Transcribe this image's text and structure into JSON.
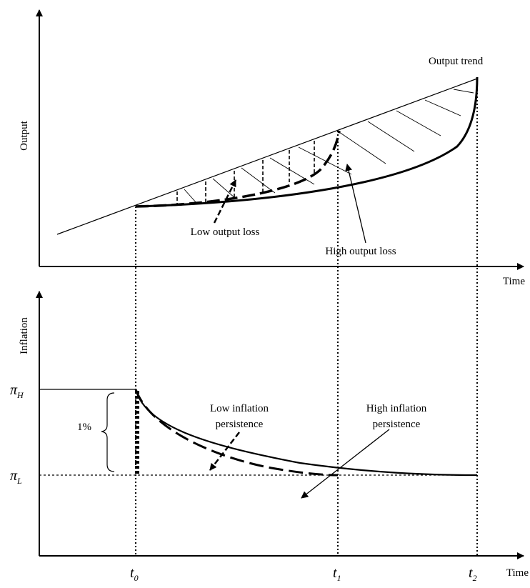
{
  "top_panel": {
    "y_axis_label": "Output",
    "x_axis_label": "Time",
    "trend_label": "Output trend",
    "low_loss_label": "Low output loss",
    "high_loss_label": "High output loss"
  },
  "bottom_panel": {
    "y_axis_label": "Inflation",
    "x_axis_label": "Time",
    "pi_high": {
      "symbol": "π",
      "subscript": "H"
    },
    "pi_low": {
      "symbol": "π",
      "subscript": "L"
    },
    "gap_label": "1%",
    "low_persistence_label": [
      "Low inflation",
      "persistence"
    ],
    "high_persistence_label": [
      "High inflation",
      "persistence"
    ],
    "time_marks": [
      {
        "symbol": "t",
        "subscript": "0"
      },
      {
        "symbol": "t",
        "subscript": "1"
      },
      {
        "symbol": "t",
        "subscript": "2"
      }
    ]
  }
}
